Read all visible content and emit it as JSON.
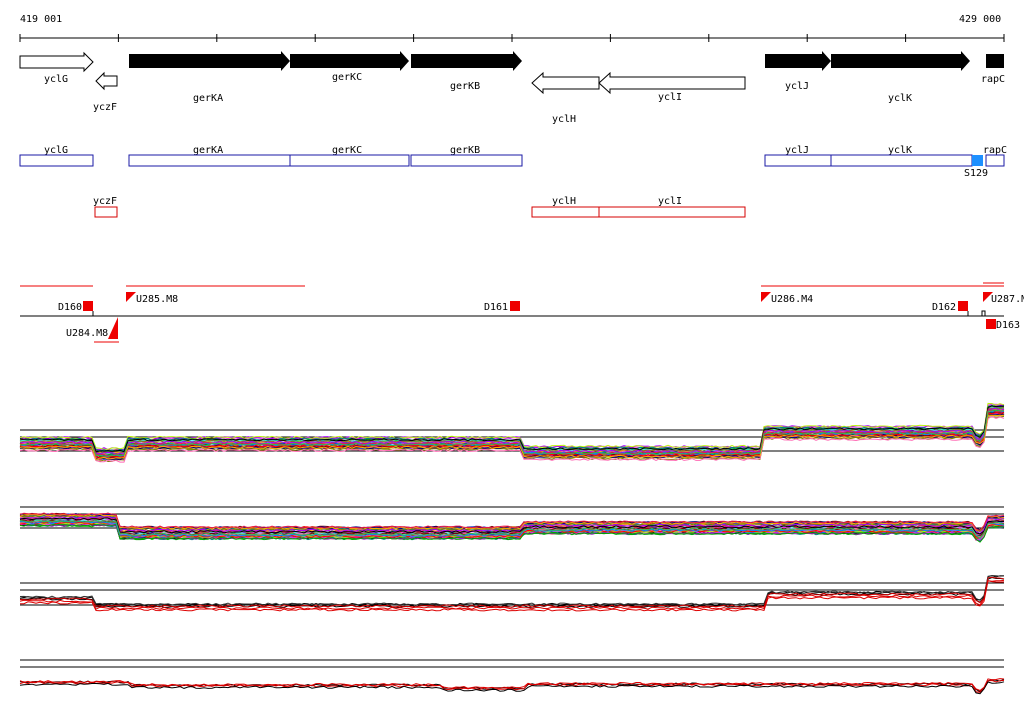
{
  "coordinates": {
    "start": "419 001",
    "end": "429 000"
  },
  "colors": {
    "forward_gene": "#000000",
    "reverse_gene": "#ffffff",
    "forward_box": "#1a1aa6",
    "reverse_box": "#d40000",
    "marker": "#ee0000",
    "site": "#1e90ff"
  },
  "genes": {
    "yclG": "yclG",
    "yczF": "yczF",
    "gerKA": "gerKA",
    "gerKC": "gerKC",
    "gerKB": "gerKB",
    "yclH": "yclH",
    "yclI": "yclI",
    "yclJ": "yclJ",
    "yclK": "yclK",
    "rapC": "rapC"
  },
  "site_label": "S129",
  "markers": {
    "D160": "D160",
    "D161": "D161",
    "D162": "D162",
    "D163": "D163",
    "U284": "U284.M8",
    "U285": "U285.M8",
    "U286": "U286.M4",
    "U287": "U287.M"
  }
}
